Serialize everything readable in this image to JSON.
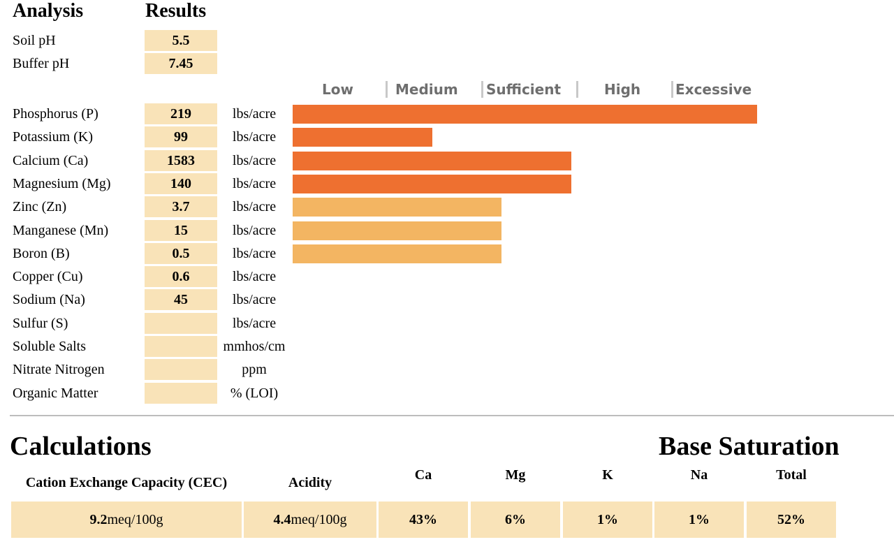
{
  "headers": {
    "analysis": "Analysis",
    "results": "Results"
  },
  "ph_rows": [
    {
      "label": "Soil pH",
      "value": "5.5"
    },
    {
      "label": "Buffer pH",
      "value": "7.45"
    }
  ],
  "scale_labels": [
    "Low",
    "Medium",
    "Sufficient",
    "High",
    "Excessive"
  ],
  "nutrient_rows": [
    {
      "label": "Phosphorus (P)",
      "value": "219",
      "unit": "lbs/acre"
    },
    {
      "label": "Potassium (K)",
      "value": "99",
      "unit": "lbs/acre"
    },
    {
      "label": "Calcium (Ca)",
      "value": "1583",
      "unit": "lbs/acre"
    },
    {
      "label": "Magnesium (Mg)",
      "value": "140",
      "unit": "lbs/acre"
    },
    {
      "label": "Zinc (Zn)",
      "value": "3.7",
      "unit": "lbs/acre"
    },
    {
      "label": "Manganese (Mn)",
      "value": "15",
      "unit": "lbs/acre"
    },
    {
      "label": "Boron (B)",
      "value": "0.5",
      "unit": "lbs/acre"
    },
    {
      "label": "Copper (Cu)",
      "value": "0.6",
      "unit": "lbs/acre"
    },
    {
      "label": "Sodium (Na)",
      "value": "45",
      "unit": "lbs/acre"
    },
    {
      "label": "Sulfur (S)",
      "value": "",
      "unit": "lbs/acre"
    },
    {
      "label": "Soluble Salts",
      "value": "",
      "unit": "mmhos/cm"
    },
    {
      "label": "Nitrate Nitrogen",
      "value": "",
      "unit": "ppm"
    },
    {
      "label": "Organic Matter",
      "value": "",
      "unit": "% (LOI)"
    }
  ],
  "chart_data": {
    "type": "bar",
    "orientation": "horizontal",
    "scale_max": 5,
    "categories": [
      "Phosphorus (P)",
      "Potassium (K)",
      "Calcium (Ca)",
      "Magnesium (Mg)",
      "Zinc (Zn)",
      "Manganese (Mn)",
      "Boron (B)"
    ],
    "values": [
      5.0,
      1.5,
      3.0,
      3.0,
      2.25,
      2.25,
      2.25
    ],
    "bar_colors": [
      "#ee7030",
      "#ee7030",
      "#ee7030",
      "#ee7030",
      "#f3b562",
      "#f3b562",
      "#f3b562"
    ],
    "xtick_labels": [
      "Low",
      "Medium",
      "Sufficient",
      "High",
      "Excessive"
    ],
    "grid": false
  },
  "calculations": {
    "title": "Calculations",
    "cec_label": "Cation Exchange Capacity (CEC)",
    "acidity_label": "Acidity",
    "cec_value": "9.2",
    "cec_unit": "meq/100g",
    "acidity_value": "4.4",
    "acidity_unit": "meq/100g"
  },
  "base_saturation": {
    "title": "Base Saturation",
    "columns": [
      {
        "label": "Ca",
        "value": "43%"
      },
      {
        "label": "Mg",
        "value": "6%"
      },
      {
        "label": "K",
        "value": "1%"
      },
      {
        "label": "Na",
        "value": "1%"
      },
      {
        "label": "Total",
        "value": "52%"
      }
    ]
  }
}
